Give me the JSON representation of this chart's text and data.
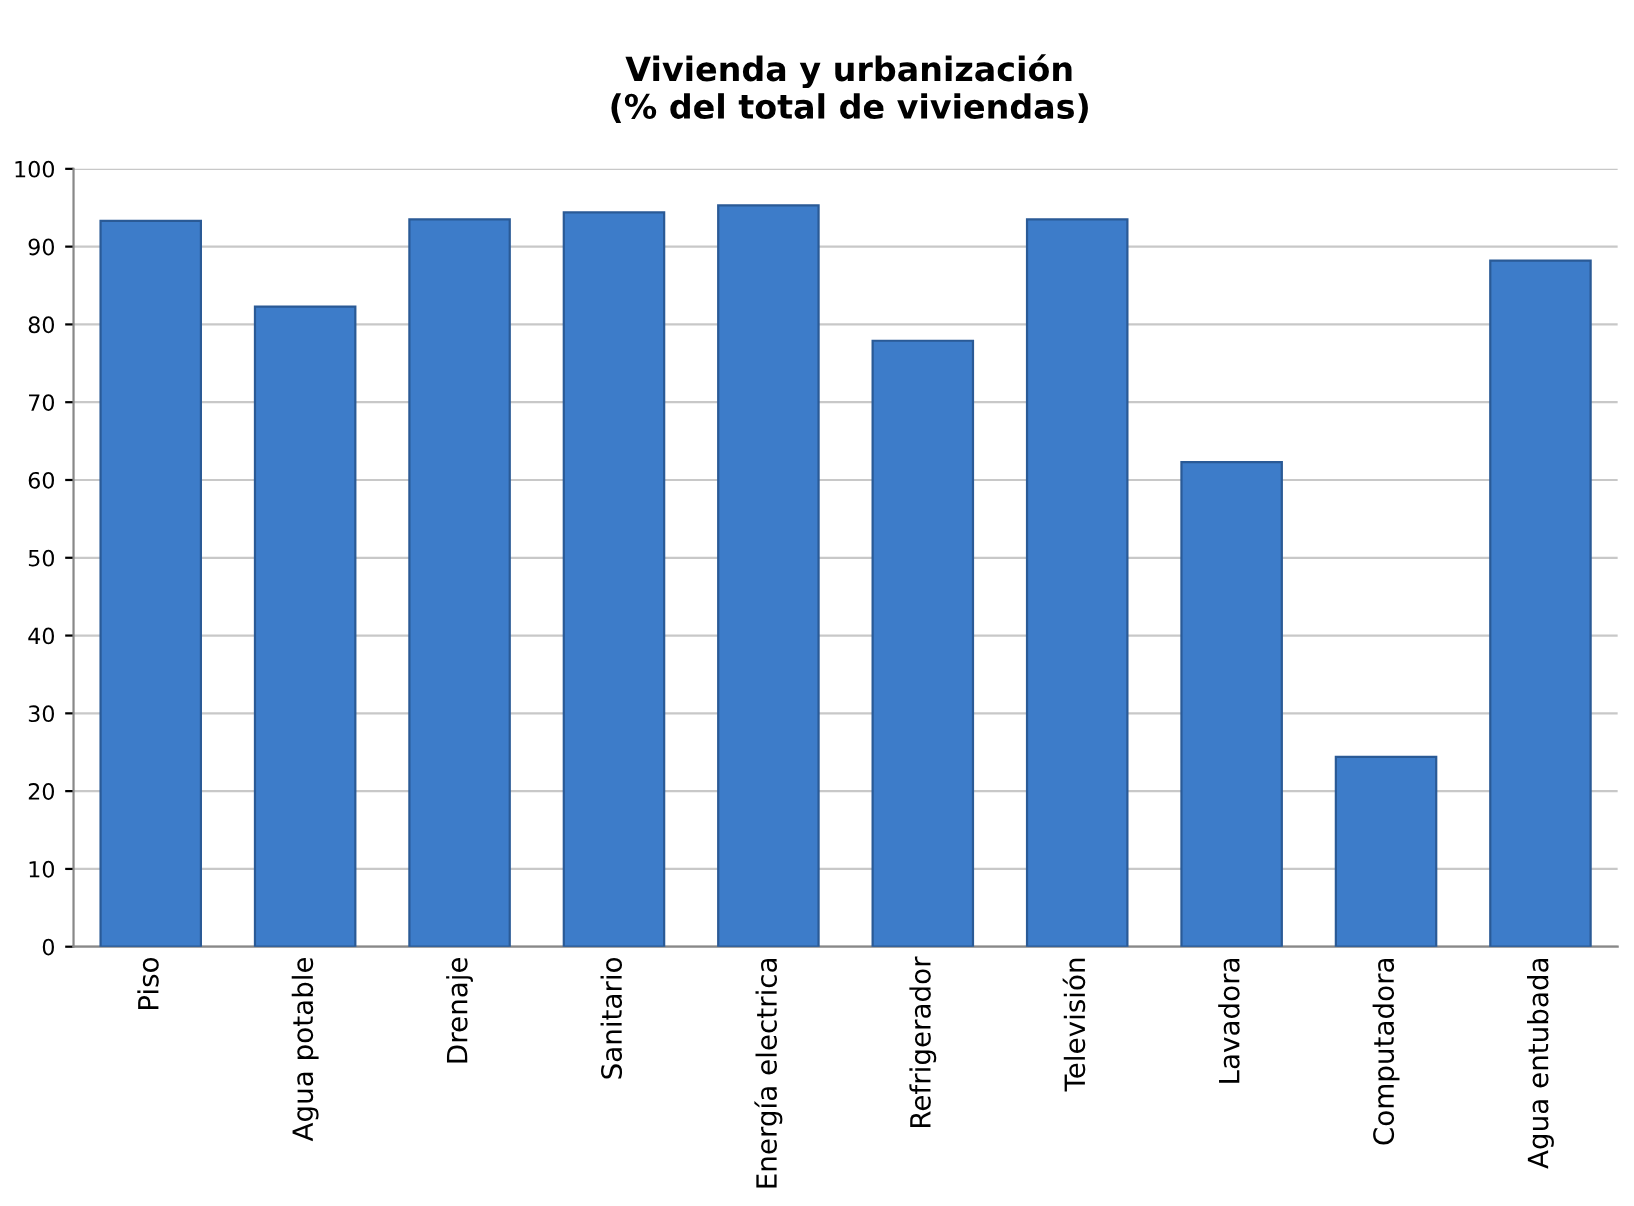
{
  "chart_data": {
    "type": "bar",
    "title": "Vivienda y urbanización\n(% del total de viviendas)",
    "categories": [
      "Piso",
      "Agua potable",
      "Drenaje",
      "Sanitario",
      "Energía electrica",
      "Refrigerador",
      "Televisión",
      "Lavadora",
      "Computadora",
      "Agua entubada"
    ],
    "values": [
      93.3,
      82.3,
      93.5,
      94.4,
      95.3,
      77.9,
      93.5,
      62.3,
      24.4,
      88.2
    ],
    "color": "#3d7cc9",
    "ylim": [
      0,
      100
    ],
    "yticks": [
      0,
      10,
      20,
      30,
      40,
      50,
      60,
      70,
      80,
      90,
      100
    ],
    "grid": "y"
  }
}
